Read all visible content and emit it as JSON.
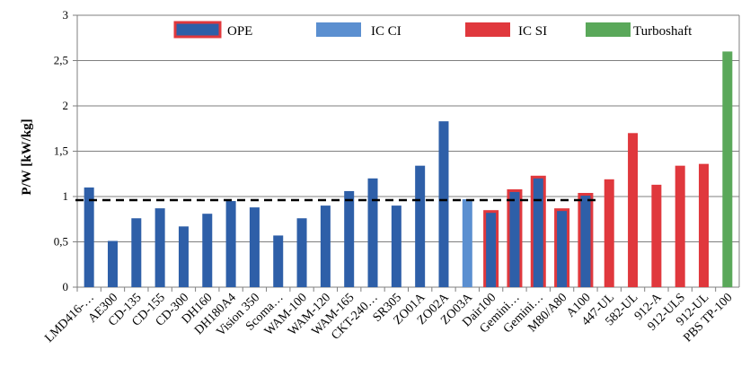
{
  "chart_data": {
    "type": "bar",
    "ylabel": "P/W [kW/kg]",
    "ylim": [
      0,
      3
    ],
    "yticks": [
      "0",
      "0,5",
      "1",
      "1,5",
      "2",
      "2,5",
      "3"
    ],
    "grid": true,
    "legend_position": "top",
    "reference_line": {
      "value": 0.96,
      "style": "dashed",
      "x_range": [
        "LMD416-…",
        "A100"
      ]
    },
    "legend": [
      {
        "key": "OPE",
        "label": "OPE"
      },
      {
        "key": "IC_CI",
        "label": "IC CI"
      },
      {
        "key": "IC_SI",
        "label": "IC SI"
      },
      {
        "key": "Turboshaft",
        "label": "Turboshaft"
      }
    ],
    "categories": [
      "LMD416-…",
      "AE300",
      "CD-135",
      "CD-155",
      "CD-300",
      "DH160",
      "DH180A4",
      "Vision 350",
      "Scoma…",
      "WAM-100",
      "WAM-120",
      "WAM-165",
      "CKT-240…",
      "SR305",
      "ZO01A",
      "ZO02A",
      "ZO03A",
      "Dair100",
      "Gemini…",
      "Gemini…",
      "M80/A80",
      "A100",
      "447-UL",
      "582-UL",
      "912-A",
      "912-ULS",
      "912-UL",
      "PBS TP-100"
    ],
    "values": [
      1.1,
      0.51,
      0.76,
      0.87,
      0.67,
      0.81,
      0.95,
      0.88,
      0.57,
      0.76,
      0.9,
      1.06,
      1.2,
      0.9,
      1.34,
      1.83,
      0.97,
      0.82,
      1.05,
      1.2,
      0.84,
      1.01,
      1.19,
      1.7,
      1.13,
      1.34,
      1.36,
      2.6
    ],
    "series_membership": [
      "OPE",
      "OPE",
      "OPE",
      "OPE",
      "OPE",
      "OPE",
      "OPE",
      "OPE",
      "OPE",
      "OPE",
      "OPE",
      "OPE",
      "OPE",
      "OPE",
      "OPE",
      "OPE",
      "IC_CI",
      "OPE",
      "OPE",
      "OPE",
      "OPE",
      "OPE",
      "IC_SI",
      "IC_SI",
      "IC_SI",
      "IC_SI",
      "IC_SI",
      "Turboshaft"
    ],
    "outlined": [
      false,
      false,
      false,
      false,
      false,
      false,
      false,
      false,
      false,
      false,
      false,
      false,
      false,
      false,
      false,
      false,
      false,
      true,
      true,
      true,
      true,
      true,
      false,
      false,
      false,
      false,
      false,
      false
    ],
    "colors": {
      "OPE": "#2e5fa8",
      "IC_CI": "#5b8fd0",
      "IC_SI": "#e0383d",
      "Turboshaft": "#5aa85a",
      "outline": "#e0383d"
    }
  }
}
